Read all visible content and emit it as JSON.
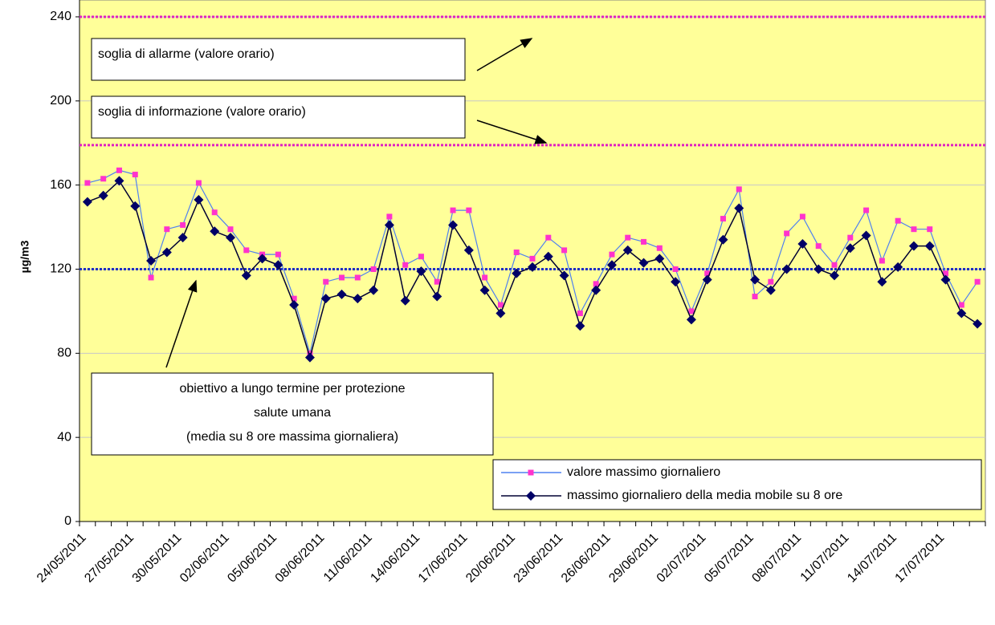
{
  "chart_data": {
    "type": "line",
    "y_label": "µg/m3",
    "categories": [
      "24/05/2011",
      null,
      null,
      "27/05/2011",
      null,
      null,
      "30/05/2011",
      null,
      null,
      "02/06/2011",
      null,
      null,
      "05/06/2011",
      null,
      null,
      "08/06/2011",
      null,
      null,
      "11/06/2011",
      null,
      null,
      "14/06/2011",
      null,
      null,
      "17/06/2011",
      null,
      null,
      "20/06/2011",
      null,
      null,
      "23/06/2011",
      null,
      null,
      "26/06/2011",
      null,
      null,
      "29/06/2011",
      null,
      null,
      "02/07/2011",
      null,
      null,
      "05/07/2011",
      null,
      null,
      "08/07/2011",
      null,
      null,
      "11/07/2011",
      null,
      null,
      "14/07/2011",
      null,
      null,
      "17/07/2011",
      null,
      null
    ],
    "series": [
      {
        "name": "valore massimo giornaliero",
        "color": "#4f81f0",
        "marker_color": "#ff33cc",
        "marker": "square",
        "values": [
          161,
          163,
          167,
          165,
          116,
          139,
          141,
          161,
          147,
          139,
          129,
          127,
          127,
          106,
          80,
          114,
          116,
          116,
          120,
          145,
          122,
          126,
          114,
          148,
          148,
          116,
          103,
          128,
          125,
          135,
          129,
          99,
          113,
          127,
          135,
          133,
          130,
          120,
          100,
          118,
          144,
          158,
          107,
          114,
          137,
          145,
          131,
          122,
          135,
          148,
          124,
          143,
          139,
          139,
          118,
          103,
          114
        ]
      },
      {
        "name": "massimo giornaliero della media mobile su 8 ore",
        "color": "#000033",
        "marker_color": "#000066",
        "marker": "diamond",
        "values": [
          152,
          155,
          162,
          150,
          124,
          128,
          135,
          153,
          138,
          135,
          117,
          125,
          122,
          103,
          78,
          106,
          108,
          106,
          110,
          141,
          105,
          119,
          107,
          141,
          129,
          110,
          99,
          118,
          121,
          126,
          117,
          93,
          110,
          122,
          129,
          123,
          125,
          114,
          96,
          115,
          134,
          149,
          115,
          110,
          120,
          132,
          120,
          117,
          130,
          136,
          114,
          121,
          131,
          131,
          115,
          99,
          94
        ]
      }
    ],
    "thresholds": [
      {
        "value": 240,
        "color": "#e020c0"
      },
      {
        "value": 179,
        "color": "#e020c0"
      },
      {
        "value": 120,
        "color": "#2030c0"
      }
    ],
    "annotations": [
      {
        "lines": [
          "soglia di allarme (valore orario)"
        ]
      },
      {
        "lines": [
          "soglia di informazione (valore orario)"
        ]
      },
      {
        "lines": [
          "obiettivo a lungo termine per protezione",
          "salute umana",
          "(media su 8 ore massima giornaliera)"
        ]
      }
    ],
    "ylim": [
      0,
      248
    ],
    "yticks": [
      0,
      40,
      80,
      120,
      160,
      200,
      240
    ],
    "grid": true,
    "legend": "bottom-right"
  }
}
